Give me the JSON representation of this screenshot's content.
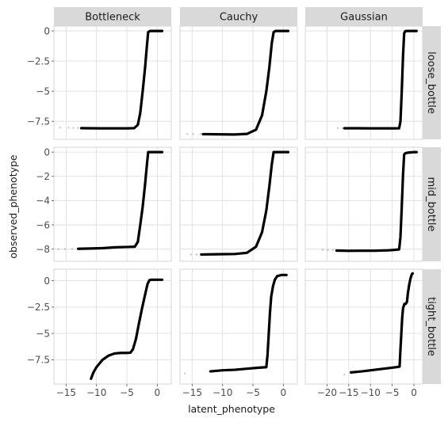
{
  "chart_data": {
    "type": "scatter",
    "xlabel": "latent_phenotype",
    "ylabel": "observed_phenotype",
    "columns": [
      "Bottleneck",
      "Cauchy",
      "Gaussian"
    ],
    "rows": [
      "loose_bottle",
      "mid_bottle",
      "tight_bottle"
    ],
    "grid": true,
    "point_color": "#000000",
    "column_x_axes": [
      {
        "xlim": [
          -17,
          2.3
        ],
        "ticks": [
          -15,
          -10,
          -5,
          0
        ],
        "tick_labels": [
          "−15",
          "−10",
          "−5",
          "0"
        ]
      },
      {
        "xlim": [
          -17,
          2.3
        ],
        "ticks": [
          -15,
          -10,
          -5,
          0
        ],
        "tick_labels": [
          "−15",
          "−10",
          "−5",
          "0"
        ]
      },
      {
        "xlim": [
          -25,
          2.0
        ],
        "ticks": [
          -20,
          -15,
          -10,
          -5,
          0
        ],
        "tick_labels": [
          "−20",
          "−15",
          "−10",
          "−5",
          "0"
        ]
      }
    ],
    "row_y_axes": [
      {
        "ylim": [
          -9.0,
          0.4
        ],
        "ticks": [
          0,
          -2.5,
          -5,
          -7.5
        ],
        "tick_labels": [
          "0",
          "−2.5",
          "−5",
          "−7.5"
        ]
      },
      {
        "ylim": [
          -9.0,
          0.4
        ],
        "ticks": [
          0,
          -2,
          -4,
          -6,
          -8
        ],
        "tick_labels": [
          "0",
          "−2",
          "−4",
          "−6",
          "−8"
        ]
      },
      {
        "ylim": [
          -9.8,
          1.1
        ],
        "ticks": [
          0,
          -2.5,
          -5,
          -7.5
        ],
        "tick_labels": [
          "0",
          "−2.5",
          "−5",
          "−7.5"
        ]
      }
    ],
    "panels": [
      {
        "column": "Bottleneck",
        "row": "loose_bottle",
        "faint_points": [
          [
            -16.0,
            -8.02
          ],
          [
            -14.6,
            -8.04
          ],
          [
            -13.8,
            -8.05
          ],
          [
            -13.0,
            -8.05
          ]
        ],
        "curve": [
          [
            -12.5,
            -8.07
          ],
          [
            -11,
            -8.08
          ],
          [
            -9,
            -8.09
          ],
          [
            -7,
            -8.09
          ],
          [
            -5,
            -8.09
          ],
          [
            -3.8,
            -8.07
          ],
          [
            -3.2,
            -7.8
          ],
          [
            -2.8,
            -6.8
          ],
          [
            -2.4,
            -5.0
          ],
          [
            -2.0,
            -3.0
          ],
          [
            -1.7,
            -1.2
          ],
          [
            -1.5,
            -0.1
          ],
          [
            -1.2,
            0.0
          ],
          [
            0,
            0.0
          ],
          [
            0.8,
            0.0
          ]
        ]
      },
      {
        "column": "Cauchy",
        "row": "loose_bottle",
        "faint_points": [
          [
            -15.8,
            -8.55
          ],
          [
            -14.8,
            -8.55
          ],
          [
            -13.6,
            -8.56
          ]
        ],
        "curve": [
          [
            -13.2,
            -8.57
          ],
          [
            -11,
            -8.58
          ],
          [
            -8,
            -8.6
          ],
          [
            -6,
            -8.55
          ],
          [
            -4.5,
            -8.2
          ],
          [
            -3.5,
            -7.0
          ],
          [
            -2.8,
            -5.0
          ],
          [
            -2.3,
            -3.0
          ],
          [
            -1.9,
            -1.0
          ],
          [
            -1.6,
            -0.1
          ],
          [
            -1.3,
            0.0
          ],
          [
            0,
            0.0
          ],
          [
            0.8,
            0.0
          ]
        ]
      },
      {
        "column": "Gaussian",
        "row": "loose_bottle",
        "faint_points": [
          [
            -17.5,
            -8.06
          ],
          [
            -16.5,
            -8.07
          ]
        ],
        "curve": [
          [
            -16.0,
            -8.08
          ],
          [
            -13,
            -8.08
          ],
          [
            -10,
            -8.09
          ],
          [
            -7,
            -8.09
          ],
          [
            -4.5,
            -8.09
          ],
          [
            -3.4,
            -8.08
          ],
          [
            -3.1,
            -7.5
          ],
          [
            -2.8,
            -5.0
          ],
          [
            -2.5,
            -2.0
          ],
          [
            -2.25,
            -0.2
          ],
          [
            -2.0,
            -0.02
          ],
          [
            -1.5,
            0.0
          ],
          [
            0,
            0.0
          ],
          [
            0.6,
            0.0
          ]
        ]
      },
      {
        "column": "Bottleneck",
        "row": "mid_bottle",
        "faint_points": [
          [
            -16.3,
            -8.0
          ],
          [
            -15.2,
            -8.0
          ],
          [
            -14.0,
            -7.98
          ]
        ],
        "curve": [
          [
            -13.0,
            -7.97
          ],
          [
            -11,
            -7.95
          ],
          [
            -9,
            -7.92
          ],
          [
            -7,
            -7.85
          ],
          [
            -5,
            -7.82
          ],
          [
            -3.7,
            -7.8
          ],
          [
            -3.2,
            -7.4
          ],
          [
            -2.8,
            -6.0
          ],
          [
            -2.4,
            -4.5
          ],
          [
            -2.0,
            -2.6
          ],
          [
            -1.7,
            -1.0
          ],
          [
            -1.5,
            0.0
          ],
          [
            -1.2,
            0.0
          ],
          [
            0,
            0.0
          ],
          [
            0.8,
            0.0
          ]
        ]
      },
      {
        "column": "Cauchy",
        "row": "mid_bottle",
        "faint_points": [
          [
            -15.2,
            -8.44
          ],
          [
            -14.3,
            -8.44
          ]
        ],
        "curve": [
          [
            -13.5,
            -8.44
          ],
          [
            -11,
            -8.42
          ],
          [
            -8,
            -8.4
          ],
          [
            -6,
            -8.3
          ],
          [
            -4.5,
            -7.8
          ],
          [
            -3.5,
            -6.6
          ],
          [
            -2.8,
            -4.8
          ],
          [
            -2.3,
            -2.8
          ],
          [
            -1.9,
            -1.0
          ],
          [
            -1.6,
            0.0
          ],
          [
            -1.3,
            0.0
          ],
          [
            0,
            0.0
          ],
          [
            0.8,
            0.0
          ]
        ]
      },
      {
        "column": "Gaussian",
        "row": "mid_bottle",
        "faint_points": [
          [
            -21.0,
            -8.06
          ],
          [
            -19.8,
            -8.08
          ],
          [
            -18.6,
            -8.08
          ]
        ],
        "curve": [
          [
            -17.8,
            -8.12
          ],
          [
            -15,
            -8.14
          ],
          [
            -12,
            -8.13
          ],
          [
            -9,
            -8.13
          ],
          [
            -6,
            -8.1
          ],
          [
            -4.5,
            -8.06
          ],
          [
            -3.4,
            -8.02
          ],
          [
            -3.1,
            -7.0
          ],
          [
            -2.8,
            -4.5
          ],
          [
            -2.5,
            -1.8
          ],
          [
            -2.25,
            -0.2
          ],
          [
            -2.0,
            -0.1
          ],
          [
            -1.5,
            -0.05
          ],
          [
            0,
            0.0
          ],
          [
            0.6,
            0.0
          ]
        ]
      },
      {
        "column": "Bottleneck",
        "row": "tight_bottle",
        "faint_points": [],
        "curve": [
          [
            -10.9,
            -9.3
          ],
          [
            -10.5,
            -8.7
          ],
          [
            -10.0,
            -8.2
          ],
          [
            -9.0,
            -7.5
          ],
          [
            -8.0,
            -7.1
          ],
          [
            -7.0,
            -6.9
          ],
          [
            -6.0,
            -6.85
          ],
          [
            -5.0,
            -6.85
          ],
          [
            -4.4,
            -6.82
          ],
          [
            -4.0,
            -6.5
          ],
          [
            -3.5,
            -5.5
          ],
          [
            -3.0,
            -4.0
          ],
          [
            -2.5,
            -2.6
          ],
          [
            -2.0,
            -1.3
          ],
          [
            -1.6,
            -0.3
          ],
          [
            -1.3,
            0.05
          ],
          [
            -1.0,
            0.1
          ],
          [
            0,
            0.1
          ],
          [
            0.8,
            0.1
          ]
        ]
      },
      {
        "column": "Cauchy",
        "row": "tight_bottle",
        "faint_points": [
          [
            -16.2,
            -8.8
          ]
        ],
        "curve": [
          [
            -12.0,
            -8.6
          ],
          [
            -10,
            -8.5
          ],
          [
            -8,
            -8.45
          ],
          [
            -6,
            -8.35
          ],
          [
            -4,
            -8.25
          ],
          [
            -2.8,
            -8.2
          ],
          [
            -2.6,
            -7.0
          ],
          [
            -2.4,
            -5.0
          ],
          [
            -2.2,
            -3.0
          ],
          [
            -2.0,
            -1.5
          ],
          [
            -1.7,
            -0.5
          ],
          [
            -1.4,
            0.1
          ],
          [
            -1.0,
            0.45
          ],
          [
            -0.3,
            0.55
          ],
          [
            0.5,
            0.55
          ]
        ]
      },
      {
        "column": "Gaussian",
        "row": "tight_bottle",
        "faint_points": [
          [
            -16.0,
            -8.9
          ]
        ],
        "curve": [
          [
            -14.5,
            -8.7
          ],
          [
            -12,
            -8.6
          ],
          [
            -9,
            -8.45
          ],
          [
            -6,
            -8.3
          ],
          [
            -4,
            -8.2
          ],
          [
            -3.3,
            -8.15
          ],
          [
            -3.1,
            -6.5
          ],
          [
            -2.9,
            -5.0
          ],
          [
            -2.7,
            -3.5
          ],
          [
            -2.5,
            -2.6
          ],
          [
            -2.2,
            -2.2
          ],
          [
            -1.9,
            -2.2
          ],
          [
            -1.6,
            -2.0
          ],
          [
            -1.4,
            -1.2
          ],
          [
            -1.1,
            -0.4
          ],
          [
            -0.8,
            0.2
          ],
          [
            -0.5,
            0.6
          ],
          [
            -0.3,
            0.7
          ]
        ]
      }
    ]
  }
}
